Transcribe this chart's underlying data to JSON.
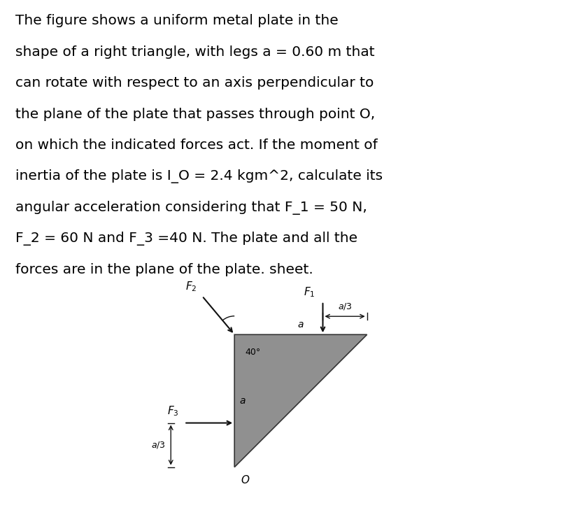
{
  "background_color": "#d8d8d8",
  "outer_bg": "#ffffff",
  "triangle_color": "#909090",
  "triangle_edge": "#333333",
  "O_label": "O",
  "a_label": "a",
  "text_lines": [
    "The figure shows a uniform metal plate in the",
    "shape of a right triangle, with legs a = 0.60 m that",
    "can rotate with respect to an axis perpendicular to",
    "the plane of the plate that passes through point O,",
    "on which the indicated forces act. If the moment of",
    "inertia of the plate is I_O = 2.4 kgm^2, calculate its",
    "angular acceleration considering that F_1 = 50 N,",
    "F_2 = 60 N and F_3 =40 N. The plate and all the",
    "forces are in the plane of the plate. sheet."
  ],
  "text_fontsize": 14.5,
  "angle_label": "40°",
  "F1_label": "$F_1$",
  "F2_label": "$F_2$",
  "F3_label": "$F_3$",
  "a3_label": "$a/3$",
  "label_fontsize": 10,
  "arrow_color": "#111111",
  "dim_color": "#111111"
}
